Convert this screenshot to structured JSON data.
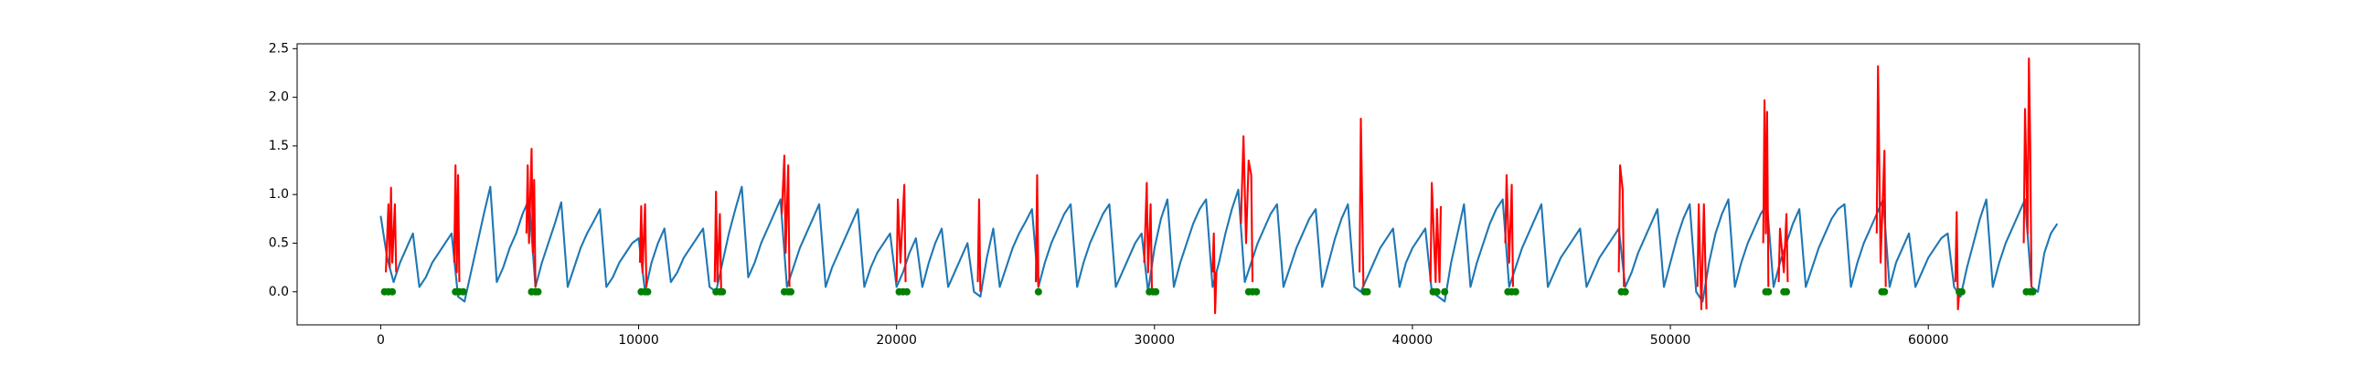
{
  "chart_data": {
    "type": "line",
    "xlim": [
      -3240,
      68180
    ],
    "ylim": [
      -0.34,
      2.55
    ],
    "xticks": [
      0,
      10000,
      20000,
      30000,
      40000,
      50000,
      60000
    ],
    "yticks": [
      {
        "value": 0,
        "label": "0.0"
      },
      0.5,
      {
        "value": 1,
        "label": "1.0"
      },
      1.5,
      {
        "value": 2,
        "label": "2.0"
      },
      2.5
    ],
    "series": [
      {
        "type": "line",
        "color": "#1f77b4",
        "x": [
          0,
          250,
          500,
          750,
          1000,
          1250,
          1500,
          1750,
          2000,
          2250,
          2500,
          2750,
          3000,
          3250,
          3500,
          3750,
          4000,
          4250,
          4500,
          4750,
          5000,
          5250,
          5500,
          5750,
          6000,
          6250,
          6500,
          6750,
          7000,
          7250,
          7500,
          7750,
          8000,
          8250,
          8500,
          8750,
          9000,
          9250,
          9500,
          9750,
          10000,
          10250,
          10500,
          10750,
          11000,
          11250,
          11500,
          11750,
          12000,
          12250,
          12500,
          12750,
          13000,
          13250,
          13500,
          13750,
          14000,
          14250,
          14500,
          14750,
          15000,
          15250,
          15500,
          15750,
          16000,
          16250,
          16500,
          16750,
          17000,
          17250,
          17500,
          17750,
          18000,
          18250,
          18500,
          18750,
          19000,
          19250,
          19500,
          19750,
          20000,
          20250,
          20500,
          20750,
          21000,
          21250,
          21500,
          21750,
          22000,
          22250,
          22500,
          22750,
          23000,
          23250,
          23500,
          23750,
          24000,
          24250,
          24500,
          24750,
          25000,
          25250,
          25500,
          25750,
          26000,
          26250,
          26500,
          26750,
          27000,
          27250,
          27500,
          27750,
          28000,
          28250,
          28500,
          28750,
          29000,
          29250,
          29500,
          29750,
          30000,
          30250,
          30500,
          30750,
          31000,
          31250,
          31500,
          31750,
          32000,
          32250,
          32500,
          32750,
          33000,
          33250,
          33500,
          33750,
          34000,
          34250,
          34500,
          34750,
          35000,
          35250,
          35500,
          35750,
          36000,
          36250,
          36500,
          36750,
          37000,
          37250,
          37500,
          37750,
          38000,
          38250,
          38500,
          38750,
          39000,
          39250,
          39500,
          39750,
          40000,
          40250,
          40500,
          40750,
          41000,
          41250,
          41500,
          41750,
          42000,
          42250,
          42500,
          42750,
          43000,
          43250,
          43500,
          43750,
          44000,
          44250,
          44500,
          44750,
          45000,
          45250,
          45500,
          45750,
          46000,
          46250,
          46500,
          46750,
          47000,
          47250,
          47500,
          47750,
          48000,
          48250,
          48500,
          48750,
          49000,
          49250,
          49500,
          49750,
          50000,
          50250,
          50500,
          50750,
          51000,
          51250,
          51500,
          51750,
          52000,
          52250,
          52500,
          52750,
          53000,
          53250,
          53500,
          53750,
          54000,
          54250,
          54500,
          54750,
          55000,
          55250,
          55500,
          55750,
          56000,
          56250,
          56500,
          56750,
          57000,
          57250,
          57500,
          57750,
          58000,
          58250,
          58500,
          58750,
          59000,
          59250,
          59500,
          59750,
          60000,
          60250,
          60500,
          60750,
          61000,
          61250,
          61500,
          61750,
          62000,
          62250,
          62500,
          62750,
          63000,
          63250,
          63500,
          63750,
          64000,
          64250,
          64500,
          64750,
          65000
        ],
        "values": [
          0.78,
          0.35,
          0.1,
          0.3,
          0.45,
          0.6,
          0.05,
          0.15,
          0.3,
          0.4,
          0.5,
          0.6,
          -0.05,
          -0.1,
          0.2,
          0.5,
          0.8,
          1.08,
          0.1,
          0.25,
          0.45,
          0.6,
          0.8,
          0.95,
          0.05,
          0.3,
          0.5,
          0.7,
          0.92,
          0.05,
          0.25,
          0.45,
          0.6,
          0.72,
          0.85,
          0.05,
          0.15,
          0.3,
          0.4,
          0.5,
          0.55,
          0.0,
          0.3,
          0.5,
          0.65,
          0.1,
          0.2,
          0.35,
          0.45,
          0.55,
          0.65,
          0.05,
          0.0,
          0.3,
          0.6,
          0.85,
          1.08,
          0.15,
          0.3,
          0.5,
          0.65,
          0.8,
          0.95,
          0.05,
          0.25,
          0.45,
          0.6,
          0.75,
          0.9,
          0.05,
          0.25,
          0.4,
          0.55,
          0.7,
          0.85,
          0.05,
          0.25,
          0.4,
          0.5,
          0.6,
          0.05,
          0.2,
          0.4,
          0.55,
          0.05,
          0.3,
          0.5,
          0.65,
          0.05,
          0.2,
          0.35,
          0.5,
          0.0,
          -0.05,
          0.35,
          0.65,
          0.05,
          0.25,
          0.45,
          0.6,
          0.72,
          0.85,
          0.05,
          0.3,
          0.5,
          0.65,
          0.8,
          0.9,
          0.05,
          0.3,
          0.5,
          0.65,
          0.8,
          0.9,
          0.05,
          0.2,
          0.35,
          0.5,
          0.6,
          0.0,
          0.45,
          0.75,
          0.95,
          0.05,
          0.3,
          0.5,
          0.7,
          0.85,
          0.95,
          0.05,
          0.3,
          0.6,
          0.85,
          1.05,
          0.1,
          0.3,
          0.5,
          0.65,
          0.8,
          0.9,
          0.05,
          0.25,
          0.45,
          0.6,
          0.75,
          0.85,
          0.05,
          0.3,
          0.55,
          0.75,
          0.9,
          0.05,
          0.0,
          0.15,
          0.3,
          0.45,
          0.55,
          0.65,
          0.05,
          0.3,
          0.45,
          0.55,
          0.65,
          0.0,
          -0.05,
          -0.1,
          0.3,
          0.6,
          0.9,
          0.05,
          0.3,
          0.5,
          0.7,
          0.85,
          0.95,
          0.05,
          0.25,
          0.45,
          0.6,
          0.75,
          0.9,
          0.05,
          0.2,
          0.35,
          0.45,
          0.55,
          0.65,
          0.05,
          0.2,
          0.35,
          0.45,
          0.55,
          0.65,
          0.05,
          0.2,
          0.4,
          0.55,
          0.7,
          0.85,
          0.05,
          0.3,
          0.55,
          0.75,
          0.9,
          0.0,
          -0.1,
          0.3,
          0.6,
          0.8,
          0.95,
          0.05,
          0.3,
          0.5,
          0.65,
          0.8,
          0.9,
          0.05,
          0.3,
          0.5,
          0.7,
          0.85,
          0.05,
          0.25,
          0.45,
          0.6,
          0.75,
          0.85,
          0.9,
          0.05,
          0.3,
          0.5,
          0.65,
          0.8,
          0.95,
          0.05,
          0.3,
          0.45,
          0.6,
          0.05,
          0.2,
          0.35,
          0.45,
          0.55,
          0.6,
          0.05,
          -0.05,
          0.25,
          0.5,
          0.75,
          0.95,
          0.05,
          0.3,
          0.5,
          0.65,
          0.8,
          0.95,
          0.05,
          0.0,
          0.4,
          0.6,
          0.7
        ]
      },
      {
        "type": "line",
        "color": "#ff0000",
        "x": [
          200,
          300,
          350,
          400,
          450,
          550,
          600,
          null,
          2850,
          2900,
          2950,
          3000,
          3050,
          null,
          5650,
          5700,
          5750,
          5850,
          5900,
          5950,
          6000,
          null,
          10050,
          10100,
          10150,
          10250,
          10300,
          null,
          12950,
          13000,
          13050,
          13150,
          13200,
          null,
          15550,
          15650,
          15700,
          15800,
          15850,
          null,
          20000,
          20050,
          20150,
          20300,
          20350,
          null,
          23150,
          23200,
          23250,
          null,
          25400,
          25450,
          25500,
          null,
          29600,
          29700,
          29750,
          29850,
          29900,
          null,
          32250,
          32300,
          32350,
          32400,
          null,
          33350,
          33450,
          33550,
          33650,
          33750,
          33800,
          null,
          37950,
          38000,
          38050,
          38100,
          null,
          40700,
          40750,
          40900,
          40950,
          41050,
          41100,
          null,
          43600,
          43650,
          43750,
          43850,
          43900,
          null,
          48000,
          48050,
          48150,
          48200,
          null,
          51050,
          51100,
          51200,
          51300,
          51400,
          null,
          53600,
          53650,
          53700,
          53750,
          53800,
          null,
          54200,
          54250,
          54400,
          54500,
          54550,
          null,
          58000,
          58050,
          58150,
          58300,
          58350,
          null,
          61050,
          61100,
          61150,
          61200,
          null,
          63700,
          63750,
          63850,
          63900,
          63950,
          64000
        ],
        "values": [
          0.2,
          0.9,
          0.25,
          1.07,
          0.3,
          0.9,
          0.2,
          null,
          0.3,
          1.3,
          0.2,
          1.2,
          0.1,
          null,
          0.6,
          1.3,
          0.5,
          1.47,
          0.4,
          1.15,
          0.05,
          null,
          0.3,
          0.88,
          0.2,
          0.9,
          0.05,
          null,
          0.1,
          1.03,
          0.1,
          0.8,
          0.0,
          null,
          0.8,
          1.4,
          0.4,
          1.3,
          0.05,
          null,
          0.1,
          0.95,
          0.3,
          1.1,
          0.1,
          null,
          0.1,
          0.95,
          0.0,
          null,
          0.1,
          1.2,
          0.05,
          null,
          0.3,
          1.12,
          0.2,
          0.9,
          0.0,
          null,
          0.2,
          0.6,
          -0.22,
          0.2,
          null,
          0.7,
          1.6,
          0.5,
          1.35,
          1.2,
          0.1,
          null,
          0.2,
          1.78,
          0.95,
          0.05,
          null,
          0.1,
          1.12,
          0.1,
          0.85,
          0.1,
          0.88,
          null,
          0.5,
          1.2,
          0.3,
          1.1,
          0.05,
          null,
          0.2,
          1.3,
          1.05,
          0.05,
          null,
          0.05,
          0.9,
          -0.18,
          0.9,
          -0.18,
          null,
          0.5,
          1.97,
          0.6,
          1.85,
          0.05,
          null,
          0.1,
          0.65,
          0.2,
          0.8,
          0.1,
          null,
          0.6,
          2.32,
          0.3,
          1.45,
          0.05,
          null,
          0.1,
          0.82,
          -0.18,
          0.0,
          null,
          0.5,
          1.88,
          0.6,
          2.4,
          1.55,
          0.05
        ]
      },
      {
        "type": "scatter",
        "color": "#008000",
        "x": [
          150,
          300,
          450,
          2900,
          3050,
          3200,
          5850,
          6000,
          6100,
          10100,
          10250,
          10350,
          13000,
          13150,
          13250,
          15650,
          15800,
          15900,
          20100,
          20250,
          20400,
          25500,
          29800,
          29950,
          30050,
          33650,
          33800,
          33950,
          38150,
          38250,
          40800,
          40950,
          41250,
          43700,
          43850,
          44000,
          48100,
          48250,
          53700,
          53800,
          54400,
          54500,
          58200,
          58300,
          61200,
          61300,
          63800,
          63950,
          64050
        ],
        "values": [
          0,
          0,
          0,
          0,
          0,
          0,
          0,
          0,
          0,
          0,
          0,
          0,
          0,
          0,
          0,
          0,
          0,
          0,
          0,
          0,
          0,
          0,
          0,
          0,
          0,
          0,
          0,
          0,
          0,
          0,
          0,
          0,
          0,
          0,
          0,
          0,
          0,
          0,
          0,
          0,
          0,
          0,
          0,
          0,
          0,
          0,
          0,
          0,
          0
        ]
      }
    ]
  }
}
